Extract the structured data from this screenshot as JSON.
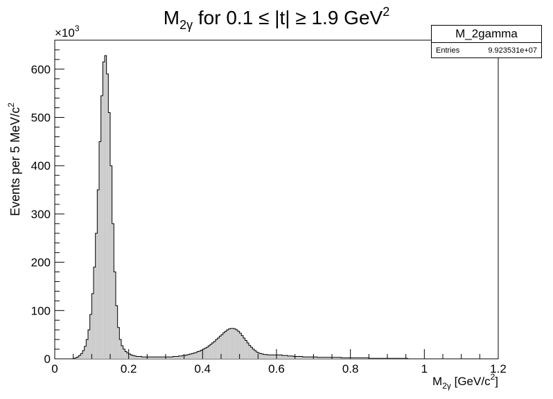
{
  "chart_data": {
    "type": "histogram",
    "title": {
      "main": "M",
      "sub": "2γ",
      "mid": " for 0.1 ≤ |t| ≥ 1.9 GeV",
      "sup": "2"
    },
    "ylabel": {
      "main": "Events per 5 MeV/c",
      "sup": "2"
    },
    "xlabel": {
      "main": "M",
      "sub": "2γ",
      "mid": " [GeV/c",
      "sup": "2",
      "end": "]"
    },
    "y_multiplier": {
      "text": "×10",
      "sup": "3"
    },
    "xlim": [
      0,
      1.2
    ],
    "ylim": [
      0,
      660
    ],
    "bin_width": 0.005,
    "x_ticks": [
      0,
      0.2,
      0.4,
      0.6,
      0.8,
      1,
      1.2
    ],
    "x_tick_labels": [
      "0",
      "0.2",
      "0.4",
      "0.6",
      "0.8",
      "1",
      "1.2"
    ],
    "y_ticks": [
      0,
      100,
      200,
      300,
      400,
      500,
      600
    ],
    "y_tick_labels": [
      "0",
      "100",
      "200",
      "300",
      "400",
      "500",
      "600"
    ],
    "bins_x_start": [
      0.05,
      0.055,
      0.06,
      0.065,
      0.07,
      0.075,
      0.08,
      0.085,
      0.09,
      0.095,
      0.1,
      0.105,
      0.11,
      0.115,
      0.12,
      0.125,
      0.13,
      0.135,
      0.14,
      0.145,
      0.15,
      0.155,
      0.16,
      0.165,
      0.17,
      0.175,
      0.18,
      0.185,
      0.19,
      0.195,
      0.2,
      0.205,
      0.21,
      0.215,
      0.22,
      0.225,
      0.23,
      0.235,
      0.24,
      0.245,
      0.25,
      0.255,
      0.26,
      0.265,
      0.27,
      0.275,
      0.28,
      0.285,
      0.29,
      0.295,
      0.3,
      0.305,
      0.31,
      0.315,
      0.32,
      0.325,
      0.33,
      0.335,
      0.34,
      0.345,
      0.35,
      0.355,
      0.36,
      0.365,
      0.37,
      0.375,
      0.38,
      0.385,
      0.39,
      0.395,
      0.4,
      0.405,
      0.41,
      0.415,
      0.42,
      0.425,
      0.43,
      0.435,
      0.44,
      0.445,
      0.45,
      0.455,
      0.46,
      0.465,
      0.47,
      0.475,
      0.48,
      0.485,
      0.49,
      0.495,
      0.5,
      0.505,
      0.51,
      0.515,
      0.52,
      0.525,
      0.53,
      0.535,
      0.54,
      0.545,
      0.55,
      0.555,
      0.56,
      0.565,
      0.57,
      0.575,
      0.58,
      0.585,
      0.59,
      0.595,
      0.6,
      0.605,
      0.61,
      0.615,
      0.62,
      0.625,
      0.63,
      0.635,
      0.64,
      0.645,
      0.65,
      0.655,
      0.66,
      0.665,
      0.67,
      0.675,
      0.68,
      0.685,
      0.69,
      0.695,
      0.7,
      0.705,
      0.71,
      0.715,
      0.72,
      0.725,
      0.73,
      0.735,
      0.74,
      0.745,
      0.75,
      0.755,
      0.76,
      0.765,
      0.77,
      0.775,
      0.78,
      0.785,
      0.79,
      0.795,
      0.8,
      0.805,
      0.81,
      0.815,
      0.82,
      0.825,
      0.83,
      0.835,
      0.84,
      0.845,
      0.85,
      0.855,
      0.86,
      0.865,
      0.87,
      0.875,
      0.88,
      0.885,
      0.89,
      0.895,
      0.9,
      0.905,
      0.91,
      0.915,
      0.92,
      0.925,
      0.93,
      0.935,
      0.94,
      0.945,
      0.95,
      0.955,
      0.96,
      0.965,
      0.97,
      0.975,
      0.98,
      0.985,
      0.99,
      0.995,
      1,
      1.005,
      1.01,
      1.015,
      1.02,
      1.025,
      1.03,
      1.035,
      1.04,
      1.045,
      1.05,
      1.055,
      1.06,
      1.065,
      1.07,
      1.075,
      1.08,
      1.085,
      1.09,
      1.095
    ],
    "counts": [
      1,
      2,
      4,
      7,
      11,
      17,
      26,
      40,
      60,
      92,
      135,
      190,
      260,
      350,
      450,
      545,
      615,
      628,
      590,
      510,
      400,
      280,
      180,
      110,
      65,
      40,
      27,
      20,
      15,
      12,
      10,
      8,
      7,
      6,
      5,
      5,
      5,
      4,
      4,
      4,
      4,
      4,
      4,
      4,
      4,
      4,
      4,
      4,
      4,
      4,
      4,
      4,
      4,
      4,
      5,
      5,
      5,
      6,
      6,
      7,
      7,
      8,
      9,
      10,
      11,
      12,
      13,
      15,
      16,
      18,
      20,
      22,
      24,
      27,
      30,
      33,
      36,
      40,
      43,
      47,
      50,
      54,
      57,
      60,
      62,
      63,
      63,
      62,
      60,
      57,
      53,
      48,
      43,
      38,
      33,
      28,
      24,
      20,
      17,
      14,
      12,
      11,
      10,
      9,
      9,
      8,
      8,
      8,
      8,
      8,
      8,
      8,
      8,
      7,
      7,
      7,
      6,
      6,
      6,
      5,
      5,
      5,
      5,
      5,
      4,
      4,
      4,
      4,
      4,
      4,
      4,
      4,
      3,
      3,
      3,
      3,
      3,
      3,
      3,
      3,
      3,
      3,
      3,
      3,
      3,
      2,
      2,
      2,
      2,
      2,
      2,
      2,
      2,
      2,
      2,
      2,
      2,
      2,
      2,
      2,
      1,
      1,
      1,
      1,
      1,
      1,
      1,
      1,
      1,
      1,
      1,
      1,
      1,
      1,
      1,
      1,
      1,
      1,
      1,
      1,
      1,
      0,
      0,
      0,
      0,
      0,
      0,
      0,
      0,
      0,
      0,
      0,
      0,
      0,
      0,
      0,
      0,
      0,
      0,
      0,
      0,
      0,
      0,
      0,
      0
    ]
  },
  "stats": {
    "name": "M_2gamma",
    "entries_label": "Entries",
    "entries_value": "9.923531e+07"
  },
  "colors": {
    "fill": "#cccccc",
    "line": "#000000",
    "frame": "#000000"
  }
}
